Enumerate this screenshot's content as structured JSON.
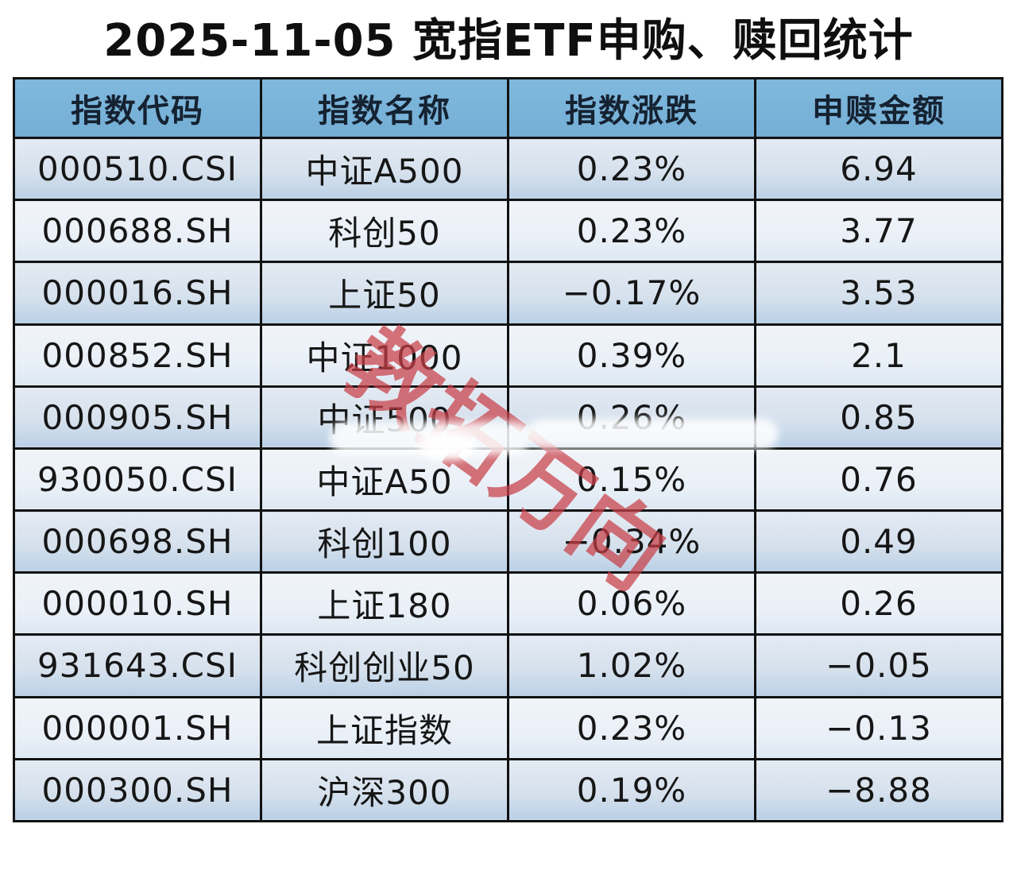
{
  "title": "2025-11-05 宽指ETF申购、赎回统计",
  "watermark": "教拓万向",
  "chart_data": {
    "type": "table",
    "title": "2025-11-05 宽指ETF申购、赎回统计",
    "columns": [
      "指数代码",
      "指数名称",
      "指数涨跌",
      "申赎金额"
    ],
    "rows": [
      [
        "000510.CSI",
        "中证A500",
        "0.23%",
        "6.94"
      ],
      [
        "000688.SH",
        "科创50",
        "0.23%",
        "3.77"
      ],
      [
        "000016.SH",
        "上证50",
        "−0.17%",
        "3.53"
      ],
      [
        "000852.SH",
        "中证1000",
        "0.39%",
        "2.1"
      ],
      [
        "000905.SH",
        "中证500",
        "0.26%",
        "0.85"
      ],
      [
        "930050.CSI",
        "中证A50",
        "0.15%",
        "0.76"
      ],
      [
        "000698.SH",
        "科创100",
        "−0.34%",
        "0.49"
      ],
      [
        "000010.SH",
        "上证180",
        "0.06%",
        "0.26"
      ],
      [
        "931643.CSI",
        "科创创业50",
        "1.02%",
        "−0.05"
      ],
      [
        "000001.SH",
        "上证指数",
        "0.23%",
        "−0.13"
      ],
      [
        "000300.SH",
        "沪深300",
        "0.19%",
        "−8.88"
      ]
    ],
    "grid": true,
    "legend_position": "none"
  },
  "colors": {
    "header_bg": "#7ab5da",
    "header_text": "#152231",
    "border": "#121212",
    "title_text": "#0f0f0f",
    "watermark_red": "#c73e46",
    "row_odd_top": "#e3eaf2",
    "row_odd_bottom": "#bad0e6",
    "row_even_top": "#f0f4f9",
    "row_even_bottom": "#dde8f3"
  }
}
